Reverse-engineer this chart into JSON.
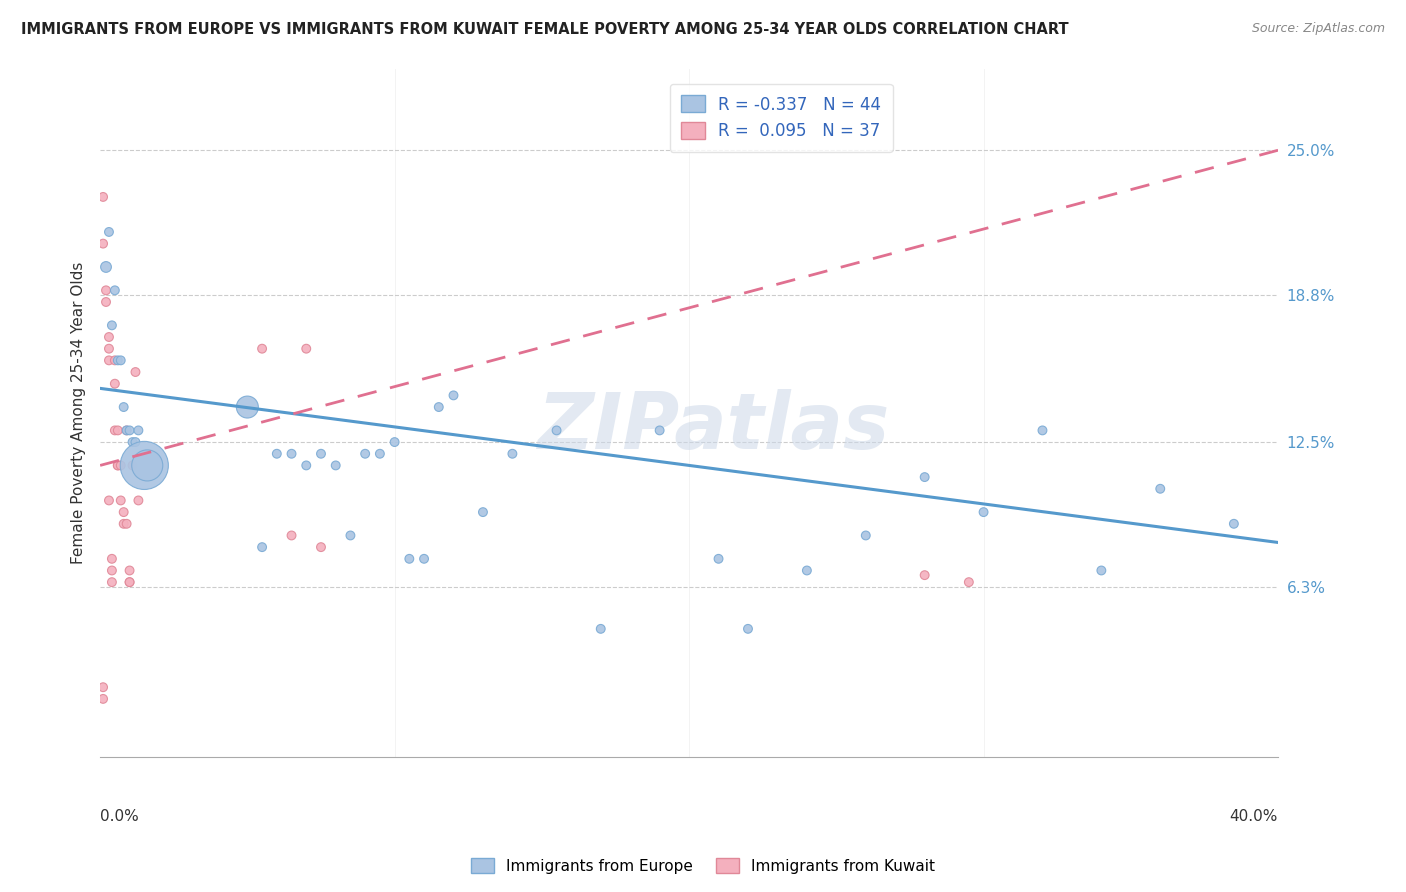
{
  "title": "IMMIGRANTS FROM EUROPE VS IMMIGRANTS FROM KUWAIT FEMALE POVERTY AMONG 25-34 YEAR OLDS CORRELATION CHART",
  "source": "Source: ZipAtlas.com",
  "ylabel": "Female Poverty Among 25-34 Year Olds",
  "right_yticks": [
    0.063,
    0.125,
    0.188,
    0.25
  ],
  "right_ytick_labels": [
    "6.3%",
    "12.5%",
    "18.8%",
    "25.0%"
  ],
  "xlim": [
    0.0,
    0.4
  ],
  "ylim": [
    -0.01,
    0.285
  ],
  "legend_r_europe": "-0.337",
  "legend_n_europe": "44",
  "legend_r_kuwait": "0.095",
  "legend_n_kuwait": "37",
  "legend_label_europe": "Immigrants from Europe",
  "legend_label_kuwait": "Immigrants from Kuwait",
  "blue_color": "#aac4e2",
  "blue_edge": "#7aaad4",
  "blue_line": "#5599cc",
  "pink_color": "#f4b0be",
  "pink_edge": "#e08898",
  "pink_line": "#e07090",
  "watermark": "ZIPatlas",
  "europe_x": [
    0.002,
    0.003,
    0.004,
    0.005,
    0.006,
    0.007,
    0.008,
    0.009,
    0.01,
    0.011,
    0.012,
    0.013,
    0.015,
    0.016,
    0.05,
    0.055,
    0.06,
    0.065,
    0.07,
    0.075,
    0.08,
    0.085,
    0.09,
    0.095,
    0.1,
    0.105,
    0.11,
    0.115,
    0.12,
    0.13,
    0.14,
    0.155,
    0.17,
    0.19,
    0.21,
    0.22,
    0.24,
    0.26,
    0.28,
    0.3,
    0.32,
    0.34,
    0.36,
    0.385
  ],
  "europe_y": [
    0.2,
    0.215,
    0.175,
    0.19,
    0.16,
    0.16,
    0.14,
    0.13,
    0.13,
    0.125,
    0.125,
    0.13,
    0.115,
    0.115,
    0.14,
    0.08,
    0.12,
    0.12,
    0.115,
    0.12,
    0.115,
    0.085,
    0.12,
    0.12,
    0.125,
    0.075,
    0.075,
    0.14,
    0.145,
    0.095,
    0.12,
    0.13,
    0.045,
    0.13,
    0.075,
    0.045,
    0.07,
    0.085,
    0.11,
    0.095,
    0.13,
    0.07,
    0.105,
    0.09
  ],
  "europe_sizes": [
    60,
    40,
    40,
    40,
    40,
    40,
    40,
    40,
    40,
    40,
    40,
    40,
    1200,
    500,
    250,
    40,
    40,
    40,
    40,
    40,
    40,
    40,
    40,
    40,
    40,
    40,
    40,
    40,
    40,
    40,
    40,
    40,
    40,
    40,
    40,
    40,
    40,
    40,
    40,
    40,
    40,
    40,
    40,
    40
  ],
  "kuwait_x": [
    0.001,
    0.001,
    0.001,
    0.001,
    0.002,
    0.002,
    0.003,
    0.003,
    0.003,
    0.003,
    0.004,
    0.004,
    0.004,
    0.005,
    0.005,
    0.005,
    0.006,
    0.006,
    0.006,
    0.007,
    0.007,
    0.008,
    0.008,
    0.009,
    0.009,
    0.01,
    0.01,
    0.01,
    0.011,
    0.012,
    0.013,
    0.055,
    0.065,
    0.07,
    0.075,
    0.28,
    0.295
  ],
  "kuwait_y": [
    0.02,
    0.015,
    0.23,
    0.21,
    0.19,
    0.185,
    0.17,
    0.165,
    0.16,
    0.1,
    0.075,
    0.07,
    0.065,
    0.16,
    0.15,
    0.13,
    0.13,
    0.115,
    0.115,
    0.115,
    0.1,
    0.095,
    0.09,
    0.13,
    0.09,
    0.07,
    0.065,
    0.065,
    0.115,
    0.155,
    0.1,
    0.165,
    0.085,
    0.165,
    0.08,
    0.068,
    0.065
  ],
  "kuwait_sizes": [
    40,
    40,
    40,
    40,
    40,
    40,
    40,
    40,
    40,
    40,
    40,
    40,
    40,
    40,
    40,
    40,
    40,
    40,
    40,
    40,
    40,
    40,
    40,
    40,
    40,
    40,
    40,
    40,
    40,
    40,
    40,
    40,
    40,
    40,
    40,
    40,
    40
  ],
  "blue_line_x0": 0.0,
  "blue_line_y0": 0.148,
  "blue_line_x1": 0.4,
  "blue_line_y1": 0.082,
  "pink_line_x0": 0.0,
  "pink_line_y0": 0.115,
  "pink_line_x1": 0.4,
  "pink_line_y1": 0.25
}
